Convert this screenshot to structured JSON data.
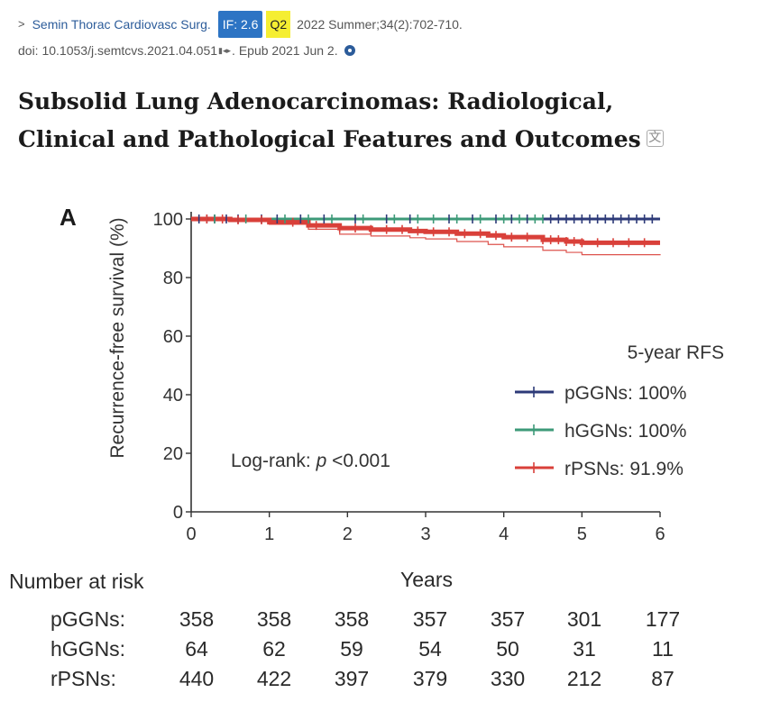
{
  "citation": {
    "arrow": ">",
    "journal": "Semin Thorac Cardiovasc Surg.",
    "impact_factor": "IF: 2.6",
    "quartile": "Q2",
    "issue": "2022 Summer;34(2):702-710.",
    "doi": "doi: 10.1053/j.semtcvs.2021.04.051",
    "epub": ". Epub 2021 Jun 2."
  },
  "article": {
    "title_line1": "Subsolid Lung Adenocarcinomas: Radiological,",
    "title_line2": "Clinical and Pathological Features and Outcomes"
  },
  "chart_data": {
    "type": "line",
    "panel_label": "A",
    "ylabel": "Recurrence-free survival (%)",
    "xlabel": "Years",
    "xlim": [
      0,
      6
    ],
    "ylim": [
      0,
      100
    ],
    "x_ticks": [
      "0",
      "1",
      "2",
      "3",
      "4",
      "5",
      "6"
    ],
    "y_ticks": [
      "0",
      "20",
      "40",
      "60",
      "80",
      "100"
    ],
    "legend_title": "5-year RFS",
    "legend_position": "right",
    "annotation_prefix": "Log-rank: ",
    "annotation_p": "p",
    "annotation_value": " <0.001",
    "colors": {
      "pGGNs": "#2d3a78",
      "hGGNs": "#3d9a78",
      "rPSNs": "#d9403a"
    },
    "series": [
      {
        "name": "pGGNs",
        "legend_label": "pGGNs: 100%",
        "x": [
          0,
          6
        ],
        "y": [
          100,
          100
        ],
        "censor_x": [
          0.1,
          0.2,
          0.3,
          0.45,
          0.6,
          0.9,
          1.1,
          1.4,
          1.7,
          2.1,
          2.5,
          2.8,
          3.3,
          3.6,
          3.9,
          4.1,
          4.3,
          4.6,
          4.7,
          4.8,
          4.9,
          5.0,
          5.1,
          5.2,
          5.3,
          5.4,
          5.5,
          5.6,
          5.7,
          5.8,
          5.9
        ]
      },
      {
        "name": "hGGNs",
        "legend_label": "hGGNs: 100%",
        "x": [
          0,
          4.5
        ],
        "y": [
          100,
          100
        ],
        "censor_x": [
          0.3,
          0.7,
          1.2,
          1.5,
          1.8,
          2.2,
          2.6,
          2.9,
          3.1,
          3.4,
          3.7,
          4.0,
          4.2,
          4.4,
          4.5
        ]
      },
      {
        "name": "rPSNs",
        "legend_label": "rPSNs:  91.9%",
        "x": [
          0,
          0.5,
          1.0,
          1.5,
          1.9,
          2.3,
          2.8,
          3.0,
          3.4,
          3.8,
          4.0,
          4.5,
          4.8,
          5.0,
          6.0
        ],
        "y": [
          100,
          99.7,
          98.9,
          97.8,
          96.9,
          96.4,
          95.9,
          95.6,
          95.0,
          94.4,
          93.8,
          92.9,
          92.3,
          91.9,
          91.9
        ],
        "ci_lower": [
          100,
          99.3,
          98.2,
          96.5,
          94.8,
          94.2,
          93.6,
          93.2,
          92.3,
          91.3,
          90.5,
          89.3,
          88.6,
          87.8,
          87.6
        ],
        "censor_x": [
          0.2,
          0.4,
          0.6,
          0.9,
          1.3,
          1.6,
          1.9,
          2.1,
          2.3,
          2.5,
          2.7,
          2.9,
          3.1,
          3.3,
          3.5,
          3.7,
          3.9,
          4.1,
          4.3,
          4.5,
          4.6,
          4.7,
          4.8,
          4.9,
          5.0,
          5.2,
          5.4,
          5.6,
          5.8
        ]
      }
    ]
  },
  "risk_table": {
    "title": "Number at risk",
    "years_label": "Years",
    "rows": [
      {
        "label": "pGGNs:",
        "values": [
          "358",
          "358",
          "358",
          "357",
          "357",
          "301",
          "177"
        ]
      },
      {
        "label": "hGGNs:",
        "values": [
          "64",
          "62",
          "59",
          "54",
          "50",
          "31",
          "11"
        ]
      },
      {
        "label": "rPSNs:",
        "values": [
          "440",
          "422",
          "397",
          "379",
          "330",
          "212",
          "87"
        ]
      }
    ]
  }
}
